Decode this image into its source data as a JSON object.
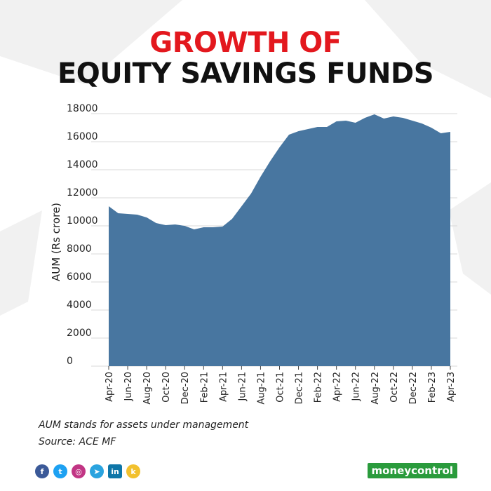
{
  "title_line1": "GROWTH OF",
  "title_line2": "EQUITY SAVINGS FUNDS",
  "footnote_1": "AUM stands for assets under management",
  "footnote_2": "Source: ACE MF",
  "logo_text": "moneycontrol",
  "social_icons": [
    "facebook-icon",
    "twitter-icon",
    "instagram-icon",
    "telegram-icon",
    "linkedin-icon",
    "koo-icon"
  ],
  "colors": {
    "area": "#4876a0",
    "title_accent": "#e3181e",
    "title_main": "#111111",
    "logo_bg": "#2a9b3c"
  },
  "chart_data": {
    "type": "area",
    "title": "GROWTH OF EQUITY SAVINGS FUNDS",
    "xlabel": "",
    "ylabel": "AUM (Rs crore)",
    "ylim": [
      0,
      18000
    ],
    "yticks": [
      0,
      2000,
      4000,
      6000,
      8000,
      10000,
      12000,
      14000,
      16000,
      18000
    ],
    "grid": true,
    "x": [
      "Apr-20",
      "May-20",
      "Jun-20",
      "Jul-20",
      "Aug-20",
      "Sep-20",
      "Oct-20",
      "Nov-20",
      "Dec-20",
      "Jan-21",
      "Feb-21",
      "Mar-21",
      "Apr-21",
      "May-21",
      "Jun-21",
      "Jul-21",
      "Aug-21",
      "Sep-21",
      "Oct-21",
      "Nov-21",
      "Dec-21",
      "Jan-22",
      "Feb-22",
      "Mar-22",
      "Apr-22",
      "May-22",
      "Jun-22",
      "Jul-22",
      "Aug-22",
      "Sep-22",
      "Oct-22",
      "Nov-22",
      "Dec-22",
      "Jan-23",
      "Feb-23",
      "Mar-23",
      "Apr-23"
    ],
    "xtick_labels": [
      "Apr-20",
      "Jun-20",
      "Aug-20",
      "Oct-20",
      "Dec-20",
      "Feb-21",
      "Apr-21",
      "Jun-21",
      "Aug-21",
      "Oct-21",
      "Dec-21",
      "Feb-22",
      "Apr-22",
      "Jun-22",
      "Aug-22",
      "Oct-22",
      "Dec-22",
      "Feb-23",
      "Apr-23"
    ],
    "series": [
      {
        "values": [
          11400,
          10900,
          10850,
          10800,
          10600,
          10200,
          10050,
          10100,
          10000,
          9750,
          9900,
          9900,
          9950,
          10500,
          11400,
          12300,
          13500,
          14600,
          15600,
          16500,
          16750,
          16900,
          17050,
          17050,
          17450,
          17500,
          17350,
          17700,
          17950,
          17650,
          17800,
          17700,
          17500,
          17300,
          17000,
          16600,
          16700
        ]
      }
    ]
  }
}
